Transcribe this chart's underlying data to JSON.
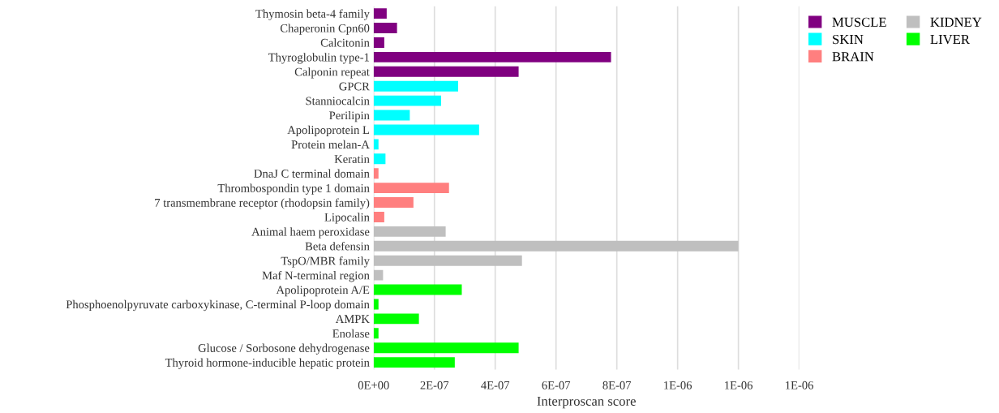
{
  "chart_data": {
    "type": "bar",
    "orientation": "horizontal",
    "xlabel": "Interproscan score",
    "categories": [
      "Thymosin beta-4 family",
      "Chaperonin Cpn60",
      "Calcitonin",
      "Thyroglobulin type-1",
      "Calponin repeat",
      "GPCR",
      "Stanniocalcin",
      "Perilipin",
      "Apolipoprotein L",
      "Protein melan-A",
      "Keratin",
      "DnaJ C terminal domain",
      "Thrombospondin type 1 domain",
      "7 transmembrane receptor (rhodopsin family)",
      "Lipocalin",
      "Animal haem peroxidase",
      "Beta defensin",
      "TspO/MBR family",
      "Maf N-terminal region",
      "Apolipoprotein A/E",
      "Phosphoenolpyruvate carboxykinase, C-terminal P-loop domain",
      "AMPK",
      "Enolase",
      "Glucose / Sorbosone dehydrogenase",
      "Thyroid hormone-inducible hepatic protein"
    ],
    "series": [
      {
        "name": "MUSCLE",
        "color": "#800080",
        "values": [
          4.3e-08,
          7.7e-08,
          3.5e-08,
          7.81e-07,
          4.77e-07,
          null,
          null,
          null,
          null,
          null,
          null,
          null,
          null,
          null,
          null,
          null,
          null,
          null,
          null,
          null,
          null,
          null,
          null,
          null,
          null
        ]
      },
      {
        "name": "SKIN",
        "color": "#00ffff",
        "values": [
          null,
          null,
          null,
          null,
          null,
          2.78e-07,
          2.22e-07,
          1.19e-07,
          3.47e-07,
          1.6e-08,
          3.9e-08,
          null,
          null,
          null,
          null,
          null,
          null,
          null,
          null,
          null,
          null,
          null,
          null,
          null,
          null
        ]
      },
      {
        "name": "BRAIN",
        "color": "#ff7f7f",
        "values": [
          null,
          null,
          null,
          null,
          null,
          null,
          null,
          null,
          null,
          null,
          null,
          1.6e-08,
          2.48e-07,
          1.31e-07,
          3.5e-08,
          null,
          null,
          null,
          null,
          null,
          null,
          null,
          null,
          null,
          null
        ]
      },
      {
        "name": "KIDNEY",
        "color": "#bfbfbf",
        "values": [
          null,
          null,
          null,
          null,
          null,
          null,
          null,
          null,
          null,
          null,
          null,
          null,
          null,
          null,
          null,
          2.37e-07,
          1.2e-06,
          4.88e-07,
          3.1e-08,
          null,
          null,
          null,
          null,
          null,
          null
        ]
      },
      {
        "name": "LIVER",
        "color": "#00ff00",
        "values": [
          null,
          null,
          null,
          null,
          null,
          null,
          null,
          null,
          null,
          null,
          null,
          null,
          null,
          null,
          null,
          null,
          null,
          null,
          null,
          2.9e-07,
          1.6e-08,
          1.49e-07,
          1.6e-08,
          4.77e-07,
          2.67e-07
        ]
      }
    ],
    "xlim": [
      0,
      1.4e-06
    ],
    "xticks": [
      {
        "value": 0,
        "label": "0E+00"
      },
      {
        "value": 2e-07,
        "label": "2E-07"
      },
      {
        "value": 4e-07,
        "label": "4E-07"
      },
      {
        "value": 6e-07,
        "label": "6E-07"
      },
      {
        "value": 8e-07,
        "label": "8E-07"
      },
      {
        "value": 1e-06,
        "label": "1E-06"
      },
      {
        "value": 1.2e-06,
        "label": "1E-06"
      },
      {
        "value": 1.4e-06,
        "label": "1E-06"
      }
    ],
    "grid": "x",
    "legend": "top right"
  }
}
